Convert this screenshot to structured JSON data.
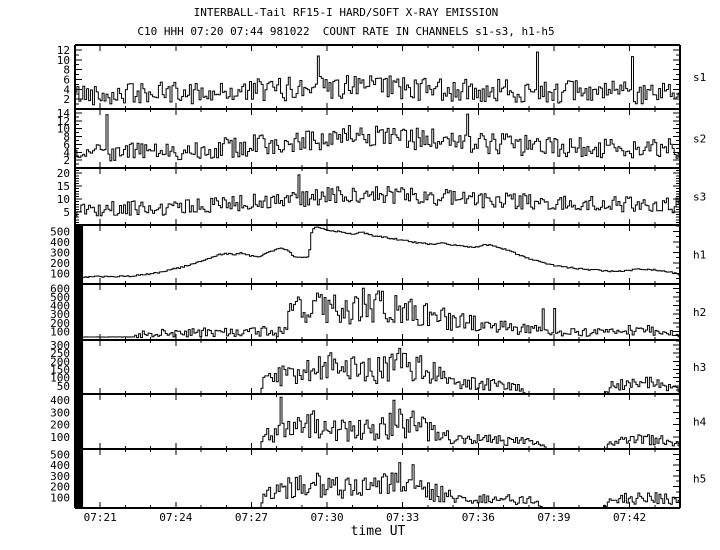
{
  "colors": {
    "foreground": "#000000",
    "background": "#ffffff"
  },
  "chart_data": {
    "type": "line",
    "title": "INTERBALL-Tail RF15-I HARD/SOFT X-RAY EMISSION",
    "subtitle": "C10 HHH 07:20 07:44 981022  COUNT RATE IN CHANNELS s1-s3, h1-h5",
    "xlabel": "time UT",
    "x_start": "07:20",
    "x_end": "07:44",
    "x_minutes_span": 24,
    "x_minor_step_min": 1,
    "grid": false,
    "x_major_ticks": [
      {
        "t": 1,
        "label": "07:21"
      },
      {
        "t": 4,
        "label": "07:24"
      },
      {
        "t": 7,
        "label": "07:27"
      },
      {
        "t": 10,
        "label": "07:30"
      },
      {
        "t": 13,
        "label": "07:33"
      },
      {
        "t": 16,
        "label": "07:36"
      },
      {
        "t": 19,
        "label": "07:39"
      },
      {
        "t": 22,
        "label": "07:42"
      }
    ],
    "panels": [
      {
        "label": "s1",
        "ylim": [
          0,
          13
        ],
        "yticks": [
          2,
          4,
          6,
          8,
          10,
          12
        ],
        "y_minor_step": 1,
        "style": "noise-steps",
        "floor": 0.5,
        "sat_bar_min": 0,
        "spike": {
          "p": 0.01,
          "max": 12
        },
        "envelope": [
          [
            0,
            3.0,
            2.2
          ],
          [
            6,
            3.4,
            2.3
          ],
          [
            9,
            4.3,
            2.6
          ],
          [
            13,
            4.3,
            2.6
          ],
          [
            16,
            3.7,
            2.4
          ],
          [
            24,
            3.2,
            2.2
          ]
        ]
      },
      {
        "label": "s2",
        "ylim": [
          0,
          15
        ],
        "yticks": [
          2,
          4,
          6,
          8,
          10,
          12,
          14
        ],
        "y_minor_step": 1,
        "style": "noise-steps",
        "floor": 0.5,
        "sat_bar_min": 0,
        "spike": {
          "p": 0.008,
          "max": 14
        },
        "envelope": [
          [
            0,
            4.0,
            2.4
          ],
          [
            4,
            4.3,
            2.4
          ],
          [
            8,
            6.2,
            2.8
          ],
          [
            11,
            8.0,
            3.0
          ],
          [
            13,
            7.6,
            3.0
          ],
          [
            16,
            6.2,
            2.8
          ],
          [
            20,
            5.2,
            2.6
          ],
          [
            24,
            4.8,
            2.6
          ]
        ]
      },
      {
        "label": "s3",
        "ylim": [
          0,
          22
        ],
        "yticks": [
          5,
          10,
          15,
          20
        ],
        "y_minor_step": 1,
        "style": "noise-steps",
        "floor": 1,
        "sat_bar_min": 0,
        "spike": {
          "p": 0.008,
          "max": 20
        },
        "envelope": [
          [
            0,
            6.0,
            2.8
          ],
          [
            4,
            6.6,
            3.0
          ],
          [
            8,
            9.6,
            3.2
          ],
          [
            11,
            12.0,
            3.5
          ],
          [
            13,
            11.6,
            3.5
          ],
          [
            16,
            9.6,
            3.2
          ],
          [
            20,
            8.2,
            3.0
          ],
          [
            24,
            7.6,
            3.0
          ]
        ]
      },
      {
        "label": "h1",
        "ylim": [
          0,
          560
        ],
        "yticks": [
          100,
          200,
          300,
          400,
          500
        ],
        "y_minor_step": 50,
        "style": "noise-steps",
        "floor": 0,
        "sat_bar_min": 0.32,
        "jitter": 7,
        "envelope": [
          [
            0,
            68
          ],
          [
            1.8,
            70
          ],
          [
            2.6,
            85
          ],
          [
            3.4,
            115
          ],
          [
            4.2,
            160
          ],
          [
            5.0,
            215
          ],
          [
            5.5,
            265
          ],
          [
            5.9,
            290
          ],
          [
            6.3,
            278
          ],
          [
            6.6,
            295
          ],
          [
            7.0,
            265
          ],
          [
            7.3,
            258
          ],
          [
            7.7,
            310
          ],
          [
            8.1,
            338
          ],
          [
            8.4,
            318
          ],
          [
            8.7,
            255
          ],
          [
            9.1,
            250
          ],
          [
            9.25,
            268
          ],
          [
            9.35,
            490
          ],
          [
            9.5,
            545
          ],
          [
            9.8,
            522
          ],
          [
            10.2,
            505
          ],
          [
            10.6,
            492
          ],
          [
            11.0,
            475
          ],
          [
            11.3,
            498
          ],
          [
            11.7,
            465
          ],
          [
            12.1,
            448
          ],
          [
            12.6,
            430
          ],
          [
            13.1,
            410
          ],
          [
            13.6,
            390
          ],
          [
            14.1,
            376
          ],
          [
            14.5,
            394
          ],
          [
            14.9,
            372
          ],
          [
            15.4,
            356
          ],
          [
            15.9,
            350
          ],
          [
            16.3,
            374
          ],
          [
            16.6,
            358
          ],
          [
            17.0,
            330
          ],
          [
            17.4,
            294
          ],
          [
            17.9,
            246
          ],
          [
            18.4,
            210
          ],
          [
            18.9,
            180
          ],
          [
            19.5,
            158
          ],
          [
            20.1,
            142
          ],
          [
            20.7,
            130
          ],
          [
            21.3,
            120
          ],
          [
            21.8,
            126
          ],
          [
            22.3,
            142
          ],
          [
            22.8,
            136
          ],
          [
            23.3,
            127
          ],
          [
            23.7,
            108
          ],
          [
            24,
            78
          ]
        ]
      },
      {
        "label": "h2",
        "ylim": [
          0,
          650
        ],
        "yticks": [
          100,
          200,
          300,
          400,
          500,
          600
        ],
        "y_minor_step": 50,
        "style": "noise-steps",
        "floor": 0,
        "sat_bar_min": 0.32,
        "spike": {
          "p": 0.008,
          "max": 640
        },
        "envelope": [
          [
            0,
            35,
            1.5
          ],
          [
            2.3,
            35,
            1.5
          ],
          [
            2.5,
            70,
            45
          ],
          [
            4,
            80,
            50
          ],
          [
            5,
            85,
            55
          ],
          [
            6,
            90,
            55
          ],
          [
            7,
            95,
            60
          ],
          [
            8.1,
            100,
            62
          ],
          [
            8.35,
            220,
            120
          ],
          [
            8.6,
            330,
            170
          ],
          [
            9.0,
            370,
            190
          ],
          [
            9.5,
            400,
            200
          ],
          [
            10.0,
            390,
            200
          ],
          [
            10.4,
            370,
            190
          ],
          [
            10.8,
            340,
            180
          ],
          [
            11.2,
            380,
            200
          ],
          [
            11.6,
            410,
            215
          ],
          [
            12.0,
            400,
            210
          ],
          [
            12.4,
            370,
            195
          ],
          [
            12.9,
            330,
            175
          ],
          [
            13.4,
            310,
            165
          ],
          [
            13.9,
            290,
            155
          ],
          [
            14.4,
            260,
            135
          ],
          [
            14.9,
            230,
            120
          ],
          [
            15.4,
            200,
            105
          ],
          [
            16.0,
            175,
            90
          ],
          [
            16.7,
            155,
            80
          ],
          [
            17.4,
            135,
            70
          ],
          [
            18.1,
            115,
            60
          ],
          [
            18.9,
            100,
            52
          ],
          [
            19.7,
            92,
            48
          ],
          [
            20.5,
            85,
            45
          ],
          [
            21.2,
            95,
            50
          ],
          [
            21.9,
            115,
            58
          ],
          [
            22.5,
            120,
            60
          ],
          [
            23.2,
            105,
            54
          ],
          [
            24,
            65,
            35
          ]
        ]
      },
      {
        "label": "h3",
        "ylim": [
          0,
          330
        ],
        "yticks": [
          50,
          100,
          150,
          200,
          250,
          300
        ],
        "y_minor_step": 25,
        "style": "noise-steps",
        "floor": 0,
        "sat_bar_min": 0.32,
        "spike": {
          "p": 0.01,
          "max": 320
        },
        "envelope": [
          [
            0,
            0,
            0
          ],
          [
            7.3,
            0,
            0
          ],
          [
            7.45,
            60,
            45
          ],
          [
            7.8,
            95,
            62
          ],
          [
            8.3,
            115,
            72
          ],
          [
            8.8,
            132,
            85
          ],
          [
            9.3,
            152,
            95
          ],
          [
            9.8,
            172,
            105
          ],
          [
            10.3,
            162,
            100
          ],
          [
            10.8,
            148,
            92
          ],
          [
            11.3,
            138,
            86
          ],
          [
            11.9,
            142,
            88
          ],
          [
            12.5,
            168,
            102
          ],
          [
            12.9,
            188,
            115
          ],
          [
            13.4,
            182,
            112
          ],
          [
            13.9,
            152,
            95
          ],
          [
            14.4,
            112,
            70
          ],
          [
            14.9,
            82,
            52
          ],
          [
            15.4,
            68,
            43
          ],
          [
            16.0,
            62,
            39
          ],
          [
            16.6,
            56,
            36
          ],
          [
            17.1,
            50,
            33
          ],
          [
            17.6,
            46,
            30
          ],
          [
            17.8,
            0,
            0
          ],
          [
            21.0,
            0,
            0
          ],
          [
            21.2,
            45,
            30
          ],
          [
            21.7,
            56,
            36
          ],
          [
            22.3,
            62,
            40
          ],
          [
            22.9,
            66,
            42
          ],
          [
            23.4,
            56,
            36
          ],
          [
            23.8,
            46,
            30
          ],
          [
            24,
            20,
            14
          ]
        ]
      },
      {
        "label": "h4",
        "ylim": [
          0,
          450
        ],
        "yticks": [
          100,
          200,
          300,
          400
        ],
        "y_minor_step": 50,
        "style": "noise-steps",
        "floor": 0,
        "sat_bar_min": 0.32,
        "spike": {
          "p": 0.01,
          "max": 435
        },
        "envelope": [
          [
            0,
            0,
            0
          ],
          [
            7.3,
            0,
            0
          ],
          [
            7.5,
            100,
            62
          ],
          [
            7.9,
            130,
            80
          ],
          [
            8.4,
            150,
            92
          ],
          [
            9.0,
            172,
            105
          ],
          [
            9.4,
            200,
            125
          ],
          [
            9.8,
            190,
            118
          ],
          [
            10.3,
            162,
            100
          ],
          [
            10.9,
            152,
            95
          ],
          [
            11.5,
            156,
            96
          ],
          [
            12.1,
            166,
            102
          ],
          [
            12.7,
            210,
            130
          ],
          [
            13.2,
            222,
            140
          ],
          [
            13.7,
            182,
            113
          ],
          [
            14.2,
            132,
            82
          ],
          [
            14.7,
            102,
            63
          ],
          [
            15.3,
            86,
            53
          ],
          [
            16.0,
            76,
            47
          ],
          [
            16.7,
            70,
            44
          ],
          [
            17.4,
            66,
            41
          ],
          [
            18.0,
            60,
            38
          ],
          [
            18.5,
            50,
            32
          ],
          [
            18.7,
            0,
            0
          ],
          [
            21.0,
            0,
            0
          ],
          [
            21.25,
            55,
            35
          ],
          [
            21.8,
            66,
            42
          ],
          [
            22.4,
            72,
            45
          ],
          [
            23.0,
            74,
            46
          ],
          [
            23.6,
            60,
            38
          ],
          [
            24,
            25,
            16
          ]
        ]
      },
      {
        "label": "h5",
        "ylim": [
          0,
          550
        ],
        "yticks": [
          100,
          200,
          300,
          400,
          500
        ],
        "y_minor_step": 50,
        "style": "noise-steps",
        "floor": 0,
        "sat_bar_min": 0.32,
        "spike": {
          "p": 0.01,
          "max": 530
        },
        "envelope": [
          [
            0,
            0,
            0
          ],
          [
            7.3,
            0,
            0
          ],
          [
            7.5,
            110,
            68
          ],
          [
            7.9,
            150,
            90
          ],
          [
            8.4,
            176,
            105
          ],
          [
            9.0,
            196,
            120
          ],
          [
            9.4,
            212,
            130
          ],
          [
            9.9,
            192,
            116
          ],
          [
            10.4,
            176,
            108
          ],
          [
            11.0,
            172,
            105
          ],
          [
            11.6,
            176,
            108
          ],
          [
            12.2,
            206,
            130
          ],
          [
            12.7,
            262,
            165
          ],
          [
            13.1,
            282,
            180
          ],
          [
            13.5,
            242,
            155
          ],
          [
            14.0,
            172,
            105
          ],
          [
            14.5,
            126,
            78
          ],
          [
            15.0,
            106,
            65
          ],
          [
            15.6,
            96,
            60
          ],
          [
            16.2,
            92,
            56
          ],
          [
            16.8,
            86,
            53
          ],
          [
            17.4,
            80,
            50
          ],
          [
            17.9,
            70,
            44
          ],
          [
            18.3,
            55,
            35
          ],
          [
            18.5,
            0,
            0
          ],
          [
            20.9,
            0,
            0
          ],
          [
            21.1,
            60,
            40
          ],
          [
            21.7,
            82,
            52
          ],
          [
            22.3,
            96,
            60
          ],
          [
            22.9,
            106,
            65
          ],
          [
            23.4,
            92,
            58
          ],
          [
            23.8,
            70,
            45
          ],
          [
            24,
            35,
            22
          ]
        ]
      }
    ]
  }
}
